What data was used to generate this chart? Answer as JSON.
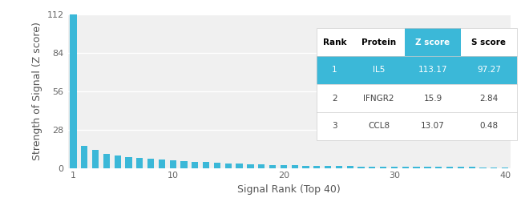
{
  "xlabel": "Signal Rank (Top 40)",
  "ylabel": "Strength of Signal (Z score)",
  "bar_color": "#3BB8D8",
  "background_color": "#ffffff",
  "plot_bg_color": "#f0f0f0",
  "grid_color": "#ffffff",
  "ylim": [
    0,
    112
  ],
  "xlim": [
    0.5,
    40.5
  ],
  "yticks": [
    0,
    28,
    56,
    84,
    112
  ],
  "xticks": [
    1,
    10,
    20,
    30,
    40
  ],
  "bar_values": [
    113.17,
    15.9,
    13.07,
    10.5,
    9.2,
    8.1,
    7.5,
    6.8,
    6.0,
    5.5,
    4.8,
    4.5,
    4.2,
    3.9,
    3.5,
    3.2,
    2.8,
    2.5,
    2.3,
    2.1,
    1.9,
    1.8,
    1.6,
    1.5,
    1.4,
    1.3,
    1.2,
    1.1,
    1.05,
    1.0,
    0.95,
    0.9,
    0.85,
    0.8,
    0.75,
    0.7,
    0.65,
    0.6,
    0.55,
    0.5
  ],
  "table_header_bg": "#3BB8D8",
  "table_row1_bg": "#3BB8D8",
  "table_row_bg": "#ffffff",
  "table_headers": [
    "Rank",
    "Protein",
    "Z score",
    "S score"
  ],
  "table_rows": [
    [
      "1",
      "IL5",
      "113.17",
      "97.27"
    ],
    [
      "2",
      "IFNGR2",
      "15.9",
      "2.84"
    ],
    [
      "3",
      "CCL8",
      "13.07",
      "0.48"
    ]
  ],
  "table_header_color": "#000000",
  "table_header_zscore_color": "#ffffff",
  "table_row1_color": "#ffffff",
  "table_text_color": "#444444"
}
